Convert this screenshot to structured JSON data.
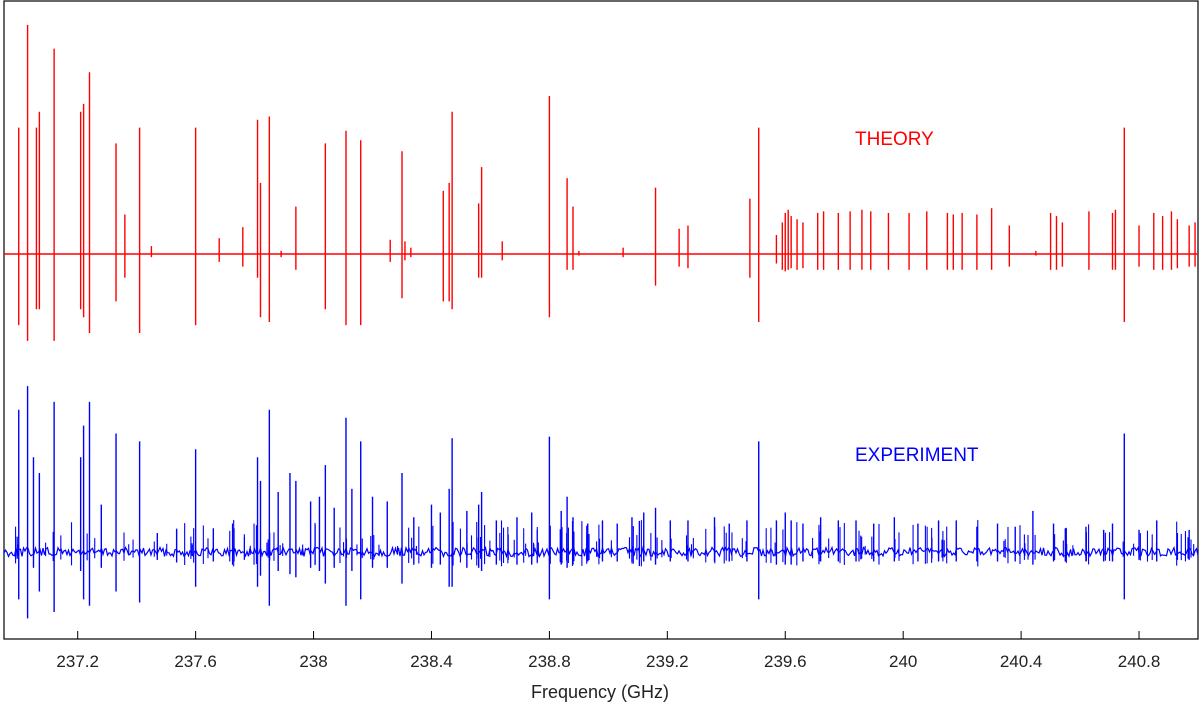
{
  "chart_data": {
    "type": "line",
    "xlabel": "Frequency (GHz)",
    "ylabel": "",
    "title": "",
    "xlim": [
      236.95,
      241.0
    ],
    "x_ticks": [
      237.2,
      237.6,
      238,
      238.4,
      238.8,
      239.2,
      239.6,
      240,
      240.4,
      240.8
    ],
    "x_tick_labels": [
      "237.2",
      "237.6",
      "238",
      "238.4",
      "238.8",
      "239.2",
      "239.6",
      "240",
      "240.4",
      "240.8"
    ],
    "grid": false,
    "series": [
      {
        "name": "THEORY",
        "color": "#ff0000",
        "peaks": [
          [
            237.0,
            0.8,
            -0.45
          ],
          [
            237.03,
            1.45,
            -0.55
          ],
          [
            237.06,
            0.8,
            -0.35
          ],
          [
            237.07,
            0.9,
            -0.35
          ],
          [
            237.12,
            1.3,
            -0.55
          ],
          [
            237.21,
            0.9,
            -0.35
          ],
          [
            237.22,
            0.95,
            -0.4
          ],
          [
            237.24,
            1.15,
            -0.5
          ],
          [
            237.33,
            0.7,
            -0.3
          ],
          [
            237.36,
            0.25,
            -0.15
          ],
          [
            237.41,
            0.8,
            -0.5
          ],
          [
            237.45,
            0.05,
            -0.02
          ],
          [
            237.6,
            0.8,
            -0.45
          ],
          [
            237.68,
            0.1,
            -0.05
          ],
          [
            237.76,
            0.17,
            -0.08
          ],
          [
            237.81,
            0.85,
            -0.15
          ],
          [
            237.82,
            0.45,
            -0.4
          ],
          [
            237.85,
            0.87,
            -0.43
          ],
          [
            237.89,
            0.02,
            -0.02
          ],
          [
            237.94,
            0.3,
            -0.1
          ],
          [
            238.04,
            0.7,
            -0.35
          ],
          [
            238.11,
            0.78,
            -0.45
          ],
          [
            238.16,
            0.72,
            -0.45
          ],
          [
            238.26,
            0.09,
            -0.05
          ],
          [
            238.3,
            0.65,
            -0.28
          ],
          [
            238.31,
            0.08,
            -0.04
          ],
          [
            238.33,
            0.04,
            -0.02
          ],
          [
            238.44,
            0.4,
            -0.3
          ],
          [
            238.46,
            0.45,
            -0.3
          ],
          [
            238.47,
            0.9,
            -0.35
          ],
          [
            238.56,
            0.32,
            -0.15
          ],
          [
            238.57,
            0.55,
            -0.15
          ],
          [
            238.64,
            0.08,
            -0.04
          ],
          [
            238.8,
            1.0,
            -0.4
          ],
          [
            238.86,
            0.48,
            -0.1
          ],
          [
            238.88,
            0.3,
            -0.1
          ],
          [
            238.9,
            0.02,
            -0.01
          ],
          [
            239.05,
            0.04,
            -0.02
          ],
          [
            239.16,
            0.42,
            -0.2
          ],
          [
            239.24,
            0.16,
            -0.08
          ],
          [
            239.27,
            0.18,
            -0.09
          ],
          [
            239.48,
            0.35,
            -0.15
          ],
          [
            239.51,
            0.8,
            -0.43
          ],
          [
            239.57,
            0.12,
            -0.06
          ],
          [
            239.59,
            0.2,
            -0.1
          ],
          [
            239.6,
            0.26,
            -0.11
          ],
          [
            239.61,
            0.28,
            -0.1
          ],
          [
            239.62,
            0.24,
            -0.09
          ],
          [
            239.64,
            0.22,
            -0.1
          ],
          [
            239.66,
            0.2,
            -0.09
          ],
          [
            239.71,
            0.26,
            -0.1
          ],
          [
            239.73,
            0.27,
            -0.1
          ],
          [
            239.78,
            0.26,
            -0.1
          ],
          [
            239.82,
            0.27,
            -0.1
          ],
          [
            239.86,
            0.28,
            -0.1
          ],
          [
            239.89,
            0.27,
            -0.1
          ],
          [
            239.95,
            0.26,
            -0.1
          ],
          [
            240.02,
            0.26,
            -0.1
          ],
          [
            240.08,
            0.27,
            -0.1
          ],
          [
            240.15,
            0.26,
            -0.1
          ],
          [
            240.17,
            0.25,
            -0.1
          ],
          [
            240.2,
            0.26,
            -0.1
          ],
          [
            240.25,
            0.25,
            -0.1
          ],
          [
            240.3,
            0.29,
            -0.1
          ],
          [
            240.36,
            0.18,
            -0.08
          ],
          [
            240.45,
            0.02,
            -0.01
          ],
          [
            240.5,
            0.26,
            -0.1
          ],
          [
            240.52,
            0.24,
            -0.1
          ],
          [
            240.54,
            0.2,
            -0.08
          ],
          [
            240.63,
            0.27,
            -0.1
          ],
          [
            240.71,
            0.26,
            -0.1
          ],
          [
            240.72,
            0.28,
            -0.1
          ],
          [
            240.75,
            0.8,
            -0.43
          ],
          [
            240.8,
            0.18,
            -0.08
          ],
          [
            240.85,
            0.26,
            -0.1
          ],
          [
            240.88,
            0.24,
            -0.1
          ],
          [
            240.91,
            0.27,
            -0.1
          ],
          [
            240.93,
            0.22,
            -0.09
          ],
          [
            240.97,
            0.18,
            -0.08
          ],
          [
            240.99,
            0.2,
            -0.08
          ]
        ]
      },
      {
        "name": "EXPERIMENT",
        "color": "#0000ff",
        "peaks": [
          [
            237.0,
            0.9,
            -0.3
          ],
          [
            237.03,
            1.05,
            -0.42
          ],
          [
            237.05,
            0.6,
            -0.1
          ],
          [
            237.07,
            0.5,
            -0.25
          ],
          [
            237.12,
            0.95,
            -0.38
          ],
          [
            237.21,
            0.6,
            -0.12
          ],
          [
            237.22,
            0.8,
            -0.3
          ],
          [
            237.24,
            0.95,
            -0.34
          ],
          [
            237.28,
            0.3,
            -0.1
          ],
          [
            237.33,
            0.75,
            -0.25
          ],
          [
            237.41,
            0.7,
            -0.32
          ],
          [
            237.47,
            0.12,
            -0.05
          ],
          [
            237.6,
            0.65,
            -0.22
          ],
          [
            237.66,
            0.15,
            -0.06
          ],
          [
            237.73,
            0.15,
            -0.06
          ],
          [
            237.81,
            0.6,
            -0.22
          ],
          [
            237.82,
            0.45,
            -0.15
          ],
          [
            237.85,
            0.9,
            -0.34
          ],
          [
            237.88,
            0.38,
            -0.12
          ],
          [
            237.92,
            0.5,
            -0.14
          ],
          [
            237.94,
            0.45,
            -0.16
          ],
          [
            237.99,
            0.32,
            -0.1
          ],
          [
            238.02,
            0.35,
            -0.12
          ],
          [
            238.04,
            0.55,
            -0.2
          ],
          [
            238.07,
            0.28,
            -0.1
          ],
          [
            238.11,
            0.85,
            -0.34
          ],
          [
            238.13,
            0.4,
            -0.12
          ],
          [
            238.16,
            0.7,
            -0.3
          ],
          [
            238.2,
            0.35,
            -0.1
          ],
          [
            238.25,
            0.32,
            -0.1
          ],
          [
            238.3,
            0.5,
            -0.2
          ],
          [
            238.34,
            0.22,
            -0.08
          ],
          [
            238.4,
            0.3,
            -0.1
          ],
          [
            238.43,
            0.25,
            -0.08
          ],
          [
            238.46,
            0.4,
            -0.22
          ],
          [
            238.47,
            0.72,
            -0.22
          ],
          [
            238.52,
            0.26,
            -0.1
          ],
          [
            238.56,
            0.3,
            -0.1
          ],
          [
            238.57,
            0.38,
            -0.12
          ],
          [
            238.62,
            0.2,
            -0.08
          ],
          [
            238.69,
            0.22,
            -0.08
          ],
          [
            238.74,
            0.25,
            -0.08
          ],
          [
            238.8,
            0.73,
            -0.3
          ],
          [
            238.84,
            0.26,
            -0.08
          ],
          [
            238.86,
            0.35,
            -0.1
          ],
          [
            238.88,
            0.22,
            -0.08
          ],
          [
            238.93,
            0.18,
            -0.06
          ],
          [
            238.98,
            0.2,
            -0.06
          ],
          [
            239.03,
            0.18,
            -0.06
          ],
          [
            239.08,
            0.22,
            -0.06
          ],
          [
            239.12,
            0.25,
            -0.06
          ],
          [
            239.16,
            0.28,
            -0.08
          ],
          [
            239.21,
            0.2,
            -0.06
          ],
          [
            239.27,
            0.2,
            -0.06
          ],
          [
            239.36,
            0.22,
            -0.06
          ],
          [
            239.41,
            0.18,
            -0.06
          ],
          [
            239.47,
            0.2,
            -0.06
          ],
          [
            239.51,
            0.7,
            -0.3
          ],
          [
            239.57,
            0.2,
            -0.08
          ],
          [
            239.6,
            0.25,
            -0.08
          ],
          [
            239.62,
            0.2,
            -0.08
          ],
          [
            239.66,
            0.18,
            -0.06
          ],
          [
            239.72,
            0.22,
            -0.06
          ],
          [
            239.78,
            0.2,
            -0.06
          ],
          [
            239.84,
            0.2,
            -0.06
          ],
          [
            239.9,
            0.18,
            -0.06
          ],
          [
            239.97,
            0.22,
            -0.06
          ],
          [
            240.05,
            0.18,
            -0.06
          ],
          [
            240.12,
            0.2,
            -0.06
          ],
          [
            240.18,
            0.2,
            -0.06
          ],
          [
            240.25,
            0.16,
            -0.06
          ],
          [
            240.32,
            0.18,
            -0.06
          ],
          [
            240.38,
            0.16,
            -0.06
          ],
          [
            240.44,
            0.26,
            -0.08
          ],
          [
            240.51,
            0.18,
            -0.06
          ],
          [
            240.55,
            0.15,
            -0.06
          ],
          [
            240.62,
            0.16,
            -0.06
          ],
          [
            240.68,
            0.14,
            -0.06
          ],
          [
            240.71,
            0.18,
            -0.06
          ],
          [
            240.75,
            0.75,
            -0.3
          ],
          [
            240.8,
            0.14,
            -0.05
          ],
          [
            240.86,
            0.2,
            -0.06
          ],
          [
            240.93,
            0.12,
            -0.05
          ],
          [
            240.97,
            0.14,
            -0.05
          ]
        ]
      }
    ]
  }
}
